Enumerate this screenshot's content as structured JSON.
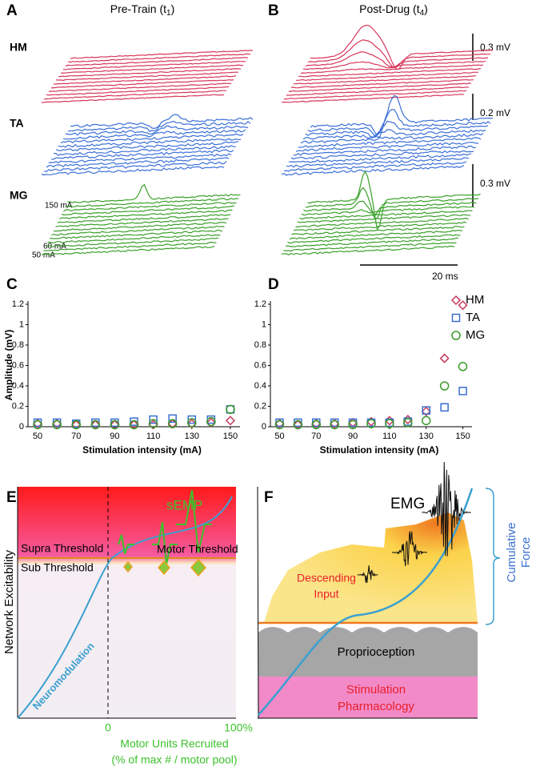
{
  "panel_a": {
    "label": "A",
    "title": [
      "Pre-Train (t",
      "1",
      ")"
    ],
    "muscles": [
      "HM",
      "TA",
      "MG"
    ],
    "intensities": [
      "150 mA",
      "60 mA",
      "50 mA"
    ]
  },
  "panel_b": {
    "label": "B",
    "title": [
      "Post-Drug (t",
      "4",
      ")"
    ],
    "scale_bars": [
      "0.3 mV",
      "0.2 mV",
      "0.3 mV",
      "20 ms"
    ]
  },
  "chart_data": [
    {
      "type": "scatter",
      "label": "C",
      "ylabel": "Amplitude (mV)",
      "xlabel": "Stimulation intensity (mA)",
      "x": [
        50,
        60,
        70,
        80,
        90,
        100,
        110,
        120,
        130,
        140,
        150
      ],
      "xlim": [
        45,
        155
      ],
      "xticks": [
        50,
        70,
        90,
        110,
        130,
        150
      ],
      "ylim": [
        0,
        1.2
      ],
      "yticks": [
        0,
        0.2,
        0.4,
        0.6,
        0.8,
        1,
        1.2
      ],
      "legend": false,
      "series": [
        {
          "color": "#c8385a",
          "marker": "diamond",
          "values": [
            0.03,
            0.03,
            0.02,
            0.02,
            0.02,
            0.02,
            0.02,
            0.03,
            0.03,
            0.04,
            0.06
          ]
        },
        {
          "color": "#3a6fd0",
          "marker": "square",
          "values": [
            0.04,
            0.04,
            0.03,
            0.04,
            0.04,
            0.05,
            0.07,
            0.08,
            0.07,
            0.07,
            0.17
          ]
        },
        {
          "color": "#3a9a2a",
          "marker": "circle",
          "values": [
            0.02,
            0.02,
            0.02,
            0.02,
            0.02,
            0.02,
            0.03,
            0.03,
            0.04,
            0.05,
            0.17
          ]
        }
      ]
    },
    {
      "type": "scatter",
      "label": "D",
      "xlabel": "Stimulation intensity (mA)",
      "x": [
        50,
        60,
        70,
        80,
        90,
        100,
        110,
        120,
        130,
        140,
        150
      ],
      "xlim": [
        45,
        155
      ],
      "xticks": [
        50,
        70,
        90,
        110,
        130,
        150
      ],
      "ylim": [
        0,
        1.2
      ],
      "yticks": [
        0,
        0.2,
        0.4,
        0.6,
        0.8,
        1,
        1.2
      ],
      "legend": true,
      "series": [
        {
          "name": "HM",
          "color": "#c8385a",
          "marker": "diamond",
          "values": [
            0.03,
            0.02,
            0.03,
            0.03,
            0.04,
            0.05,
            0.06,
            0.07,
            0.15,
            0.67,
            1.19
          ]
        },
        {
          "name": "TA",
          "color": "#3a6fd0",
          "marker": "square",
          "values": [
            0.04,
            0.04,
            0.04,
            0.04,
            0.04,
            0.04,
            0.04,
            0.05,
            0.16,
            0.19,
            0.35
          ]
        },
        {
          "name": "MG",
          "color": "#3a9a2a",
          "marker": "circle",
          "values": [
            0.02,
            0.02,
            0.02,
            0.02,
            0.02,
            0.03,
            0.03,
            0.04,
            0.06,
            0.4,
            0.59
          ]
        }
      ]
    }
  ],
  "panel_e": {
    "label": "E",
    "semp": "sEMP",
    "supra": "Supra Threshold",
    "motor_threshold": "Motor Threshold",
    "sub": "Sub Threshold",
    "curve_label": "Neuromodulation",
    "ylabel": "Network Excitability",
    "x_start": "0",
    "x_end": "100%",
    "xlabel": [
      "Motor Units Recruited",
      "(% of max # / motor pool)"
    ]
  },
  "panel_f": {
    "label": "F",
    "emg": "EMG",
    "descending": [
      "Descending",
      "Input"
    ],
    "proprioception": "Proprioception",
    "stimulation": [
      "Stimulation",
      "Pharmacology"
    ],
    "force": [
      "Cumulative",
      "Force"
    ]
  }
}
